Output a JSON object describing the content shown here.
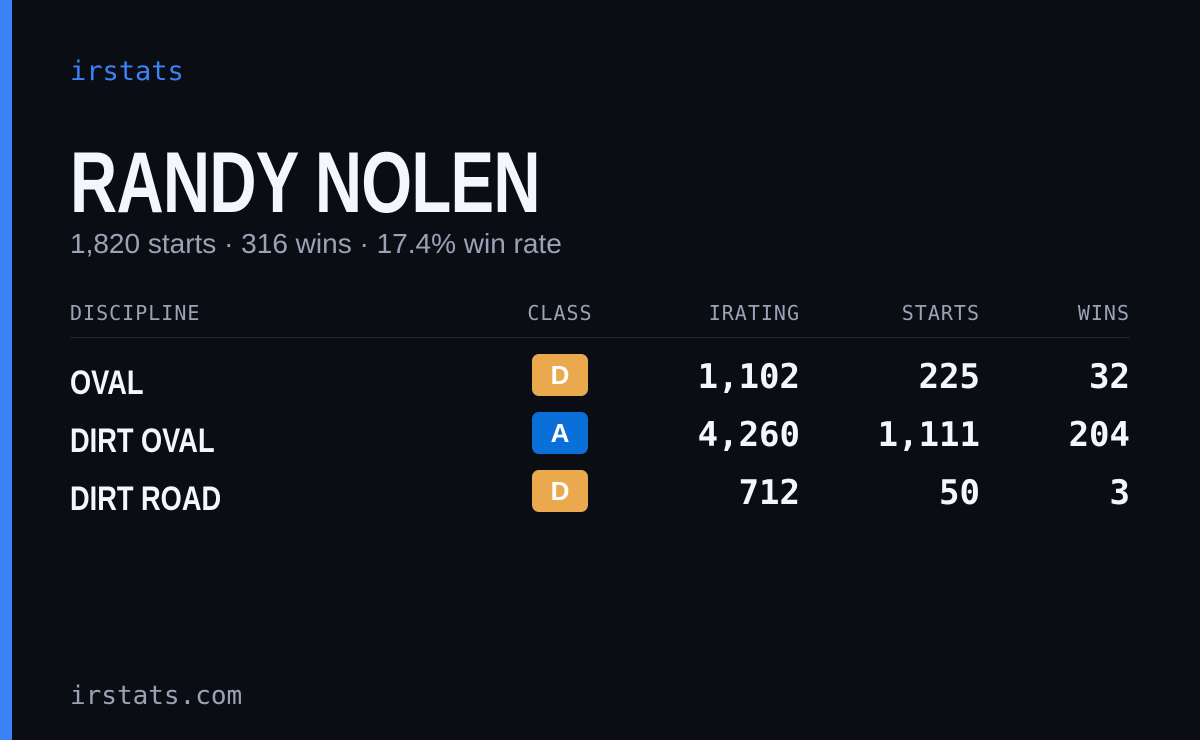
{
  "header": {
    "brand": "irstats",
    "name": "RANDY NOLEN",
    "summary": "1,820 starts · 316 wins · 17.4% win rate"
  },
  "table": {
    "columns": [
      "DISCIPLINE",
      "CLASS",
      "IRATING",
      "STARTS",
      "WINS"
    ],
    "rows": [
      [
        "OVAL",
        "D",
        "1,102",
        "225",
        "32"
      ],
      [
        "DIRT OVAL",
        "A",
        "4,260",
        "1,111",
        "204"
      ],
      [
        "DIRT ROAD",
        "D",
        "712",
        "50",
        "3"
      ]
    ],
    "class_colors": {
      "D": "#e9a94c",
      "A": "#0a6fd6"
    }
  },
  "footer": {
    "url": "irstats.com"
  }
}
